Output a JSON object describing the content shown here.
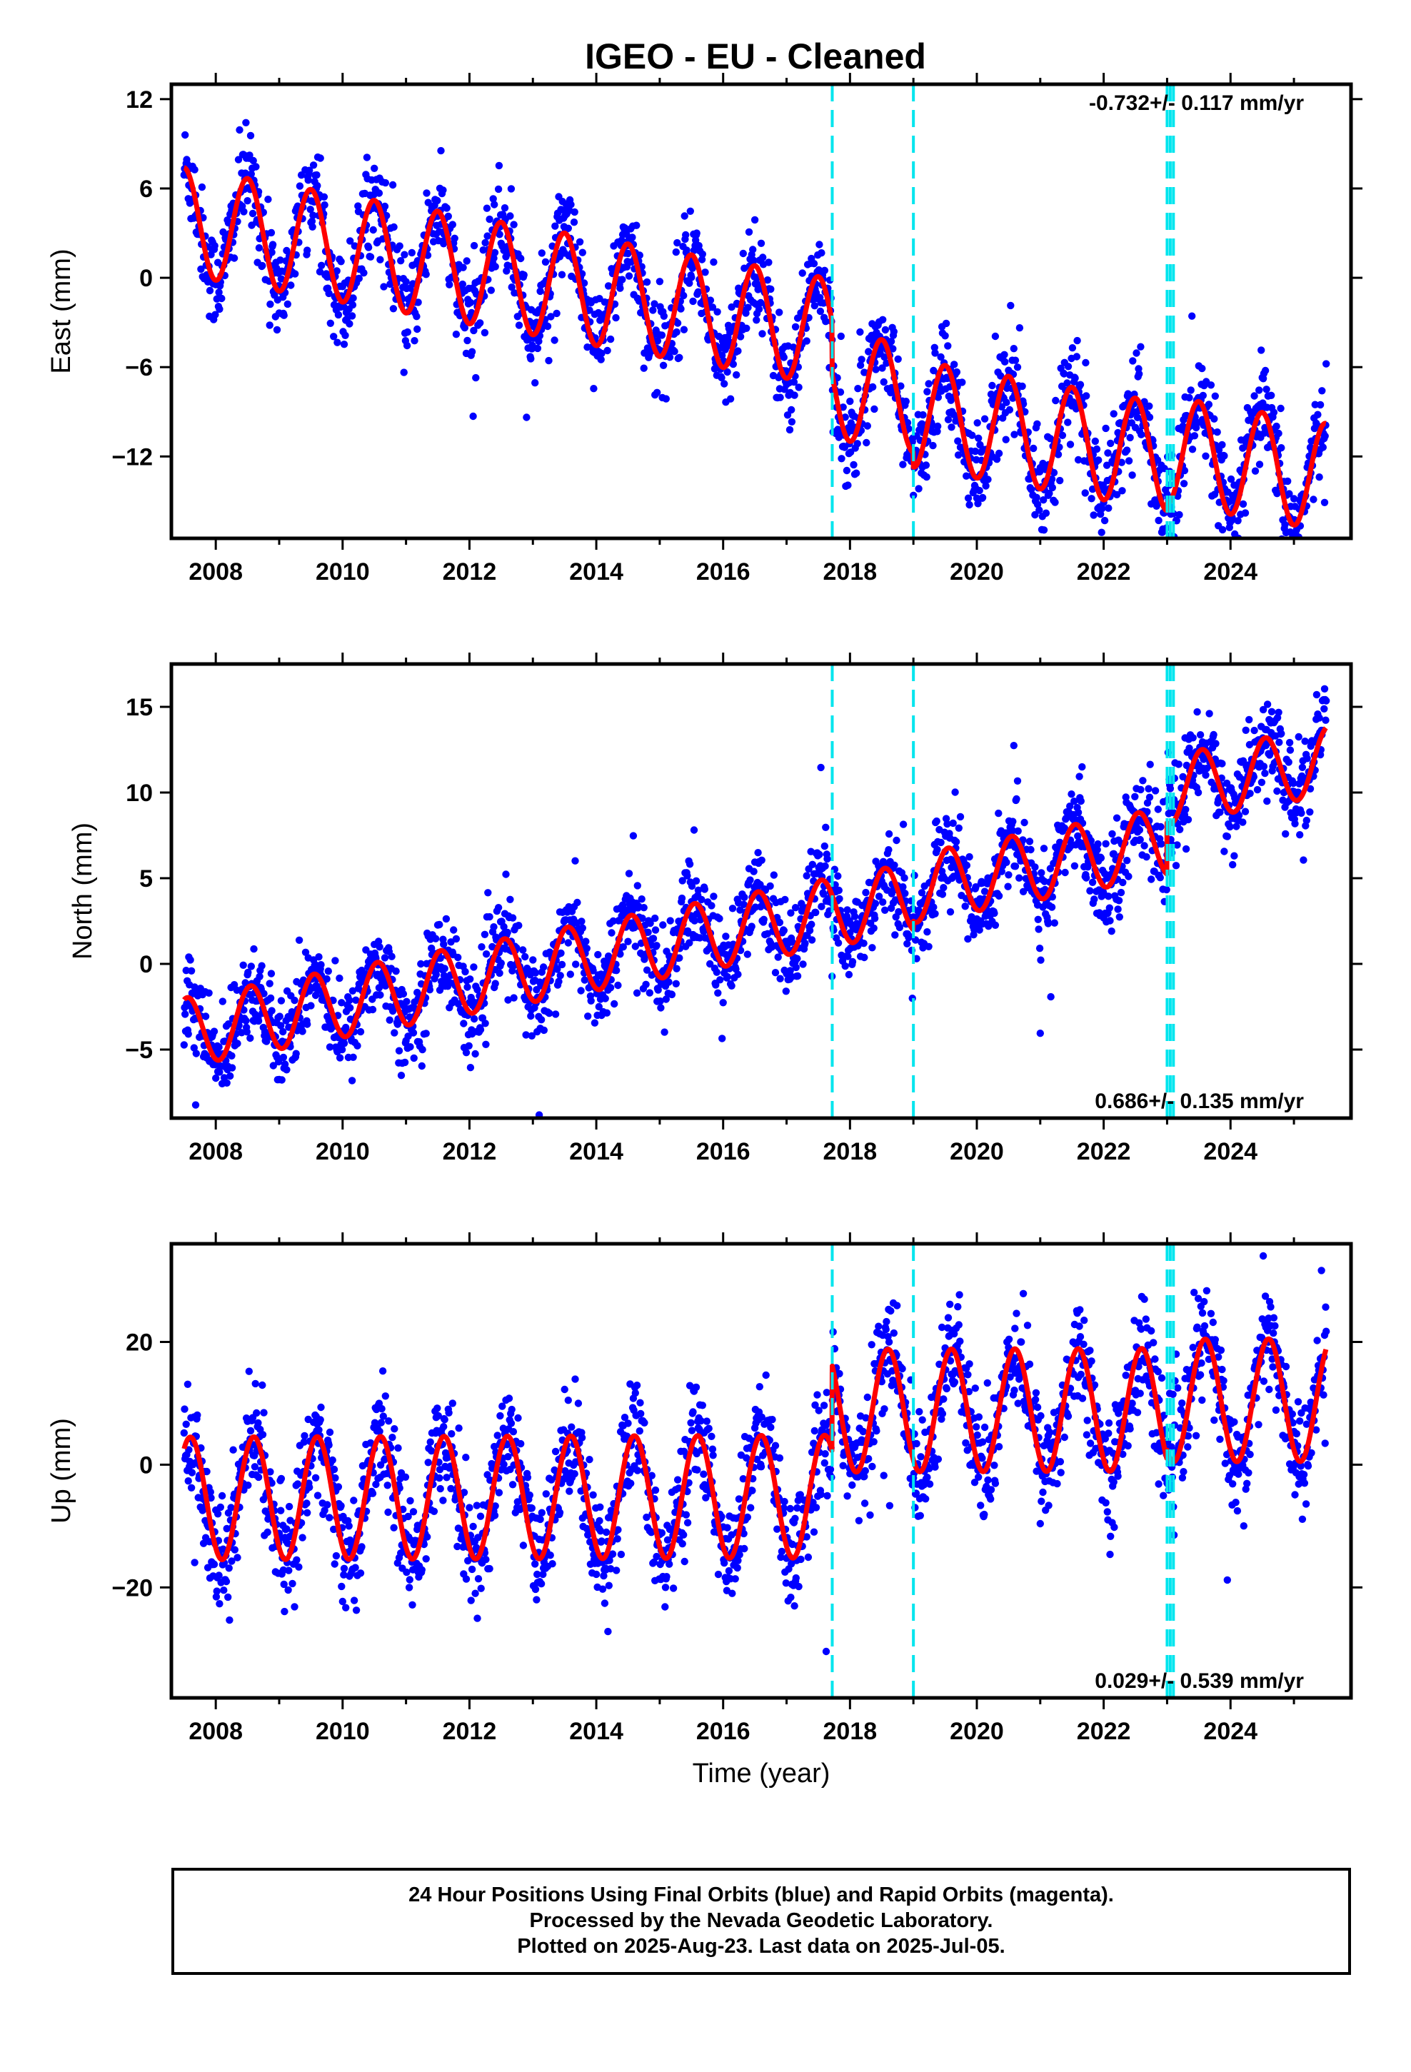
{
  "chart_data": [
    {
      "type": "scatter",
      "title": "IGEO  - EU - Cleaned",
      "xlabel": "",
      "ylabel": "East (mm)",
      "xlim": [
        2007.3,
        2025.9
      ],
      "ylim": [
        -17.5,
        13.0
      ],
      "yticks": [
        -12,
        -6,
        0,
        6,
        12
      ],
      "xticks": [
        2008,
        2010,
        2012,
        2014,
        2016,
        2018,
        2020,
        2022,
        2024
      ],
      "rate_label": "-0.732+/- 0.117 mm/yr",
      "breaks": [
        2017.72,
        2019.0,
        2023.0,
        2023.05,
        2023.1
      ],
      "series": [
        {
          "role": "daily positions",
          "color": "#0000ff"
        },
        {
          "role": "model fit",
          "color": "#ff0000"
        }
      ],
      "model": {
        "t0": 2007.5,
        "start": 3.8,
        "rate": -0.732,
        "amplitude": 3.6,
        "peak_phase": 0.5,
        "noise_sd": 1.6,
        "offsets": [
          {
            "t": 2017.72,
            "dy": -3.5
          },
          {
            "t": 2019.0,
            "dy": -1.0
          },
          {
            "t": 2023.0,
            "dy": 0.5
          }
        ]
      }
    },
    {
      "type": "scatter",
      "title": "",
      "xlabel": "",
      "ylabel": "North (mm)",
      "xlim": [
        2007.3,
        2025.9
      ],
      "ylim": [
        -9.0,
        17.5
      ],
      "yticks": [
        -5,
        0,
        5,
        10,
        15
      ],
      "xticks": [
        2008,
        2010,
        2012,
        2014,
        2016,
        2018,
        2020,
        2022,
        2024
      ],
      "rate_label": "0.686+/- 0.135 mm/yr",
      "breaks": [
        2017.72,
        2019.0,
        2023.0,
        2023.05,
        2023.1
      ],
      "series": [
        {
          "role": "daily positions",
          "color": "#0000ff"
        },
        {
          "role": "model fit",
          "color": "#ff0000"
        }
      ],
      "model": {
        "t0": 2007.5,
        "start": -4.0,
        "rate": 0.686,
        "amplitude": 2.0,
        "peak_phase": 0.55,
        "noise_sd": 1.3,
        "offsets": [
          {
            "t": 2017.72,
            "dy": 0.0
          },
          {
            "t": 2019.0,
            "dy": 0.5
          },
          {
            "t": 2023.0,
            "dy": 3.0
          }
        ]
      }
    },
    {
      "type": "scatter",
      "title": "",
      "xlabel": "Time (year)",
      "ylabel": "Up (mm)",
      "xlim": [
        2007.3,
        2025.9
      ],
      "ylim": [
        -38.0,
        36.0
      ],
      "yticks": [
        -20,
        0,
        20
      ],
      "xticks": [
        2008,
        2010,
        2012,
        2014,
        2016,
        2018,
        2020,
        2022,
        2024
      ],
      "rate_label": "0.029+/- 0.539 mm/yr",
      "breaks": [
        2017.72,
        2019.0,
        2023.0,
        2023.05,
        2023.1
      ],
      "series": [
        {
          "role": "daily positions",
          "color": "#0000ff"
        },
        {
          "role": "model fit",
          "color": "#ff0000"
        }
      ],
      "model": {
        "t0": 2007.5,
        "start": -5.5,
        "rate": 0.029,
        "amplitude": 10.0,
        "peak_phase": 0.6,
        "noise_sd": 4.5,
        "offsets": [
          {
            "t": 2017.72,
            "dy": 14.0
          },
          {
            "t": 2019.0,
            "dy": 0.0
          },
          {
            "t": 2023.0,
            "dy": 1.5
          }
        ]
      }
    }
  ],
  "colors": {
    "points": "#0000ff",
    "fit": "#ff0000",
    "breaks": "#00e5ee",
    "frame": "#000000"
  },
  "footer": {
    "line1": "24 Hour Positions Using Final Orbits (blue) and Rapid Orbits (magenta).",
    "line2": "Processed by the Nevada Geodetic Laboratory.",
    "line3": "Plotted on 2025-Aug-23. Last data on 2025-Jul-05."
  }
}
